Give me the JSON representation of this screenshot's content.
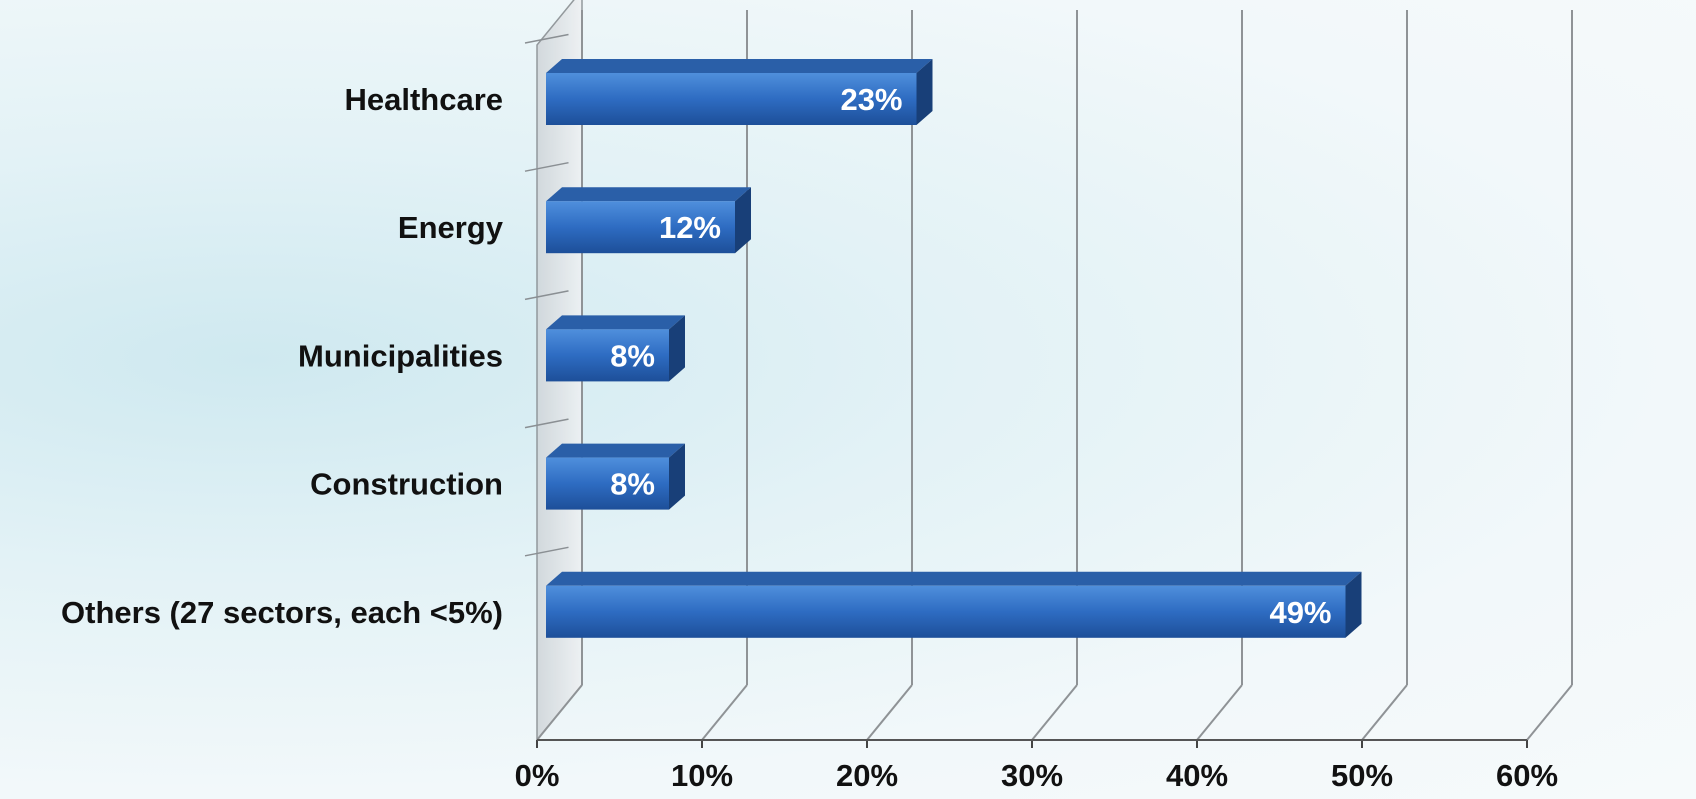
{
  "chart_data": {
    "type": "bar",
    "orientation": "horizontal",
    "style": "3d",
    "categories": [
      "Healthcare",
      "Energy",
      "Municipalities",
      "Construction",
      "Others (27 sectors, each <5%)"
    ],
    "values": [
      23,
      12,
      8,
      8,
      49
    ],
    "data_labels": [
      "23%",
      "12%",
      "8%",
      "8%",
      "49%"
    ],
    "xlim": [
      0,
      60
    ],
    "x_ticks": [
      "0%",
      "10%",
      "20%",
      "30%",
      "40%",
      "50%",
      "60%"
    ],
    "title": "",
    "xlabel": "",
    "ylabel": "",
    "grid": true,
    "legend": "none",
    "bar_color": "#2f6fc4"
  }
}
